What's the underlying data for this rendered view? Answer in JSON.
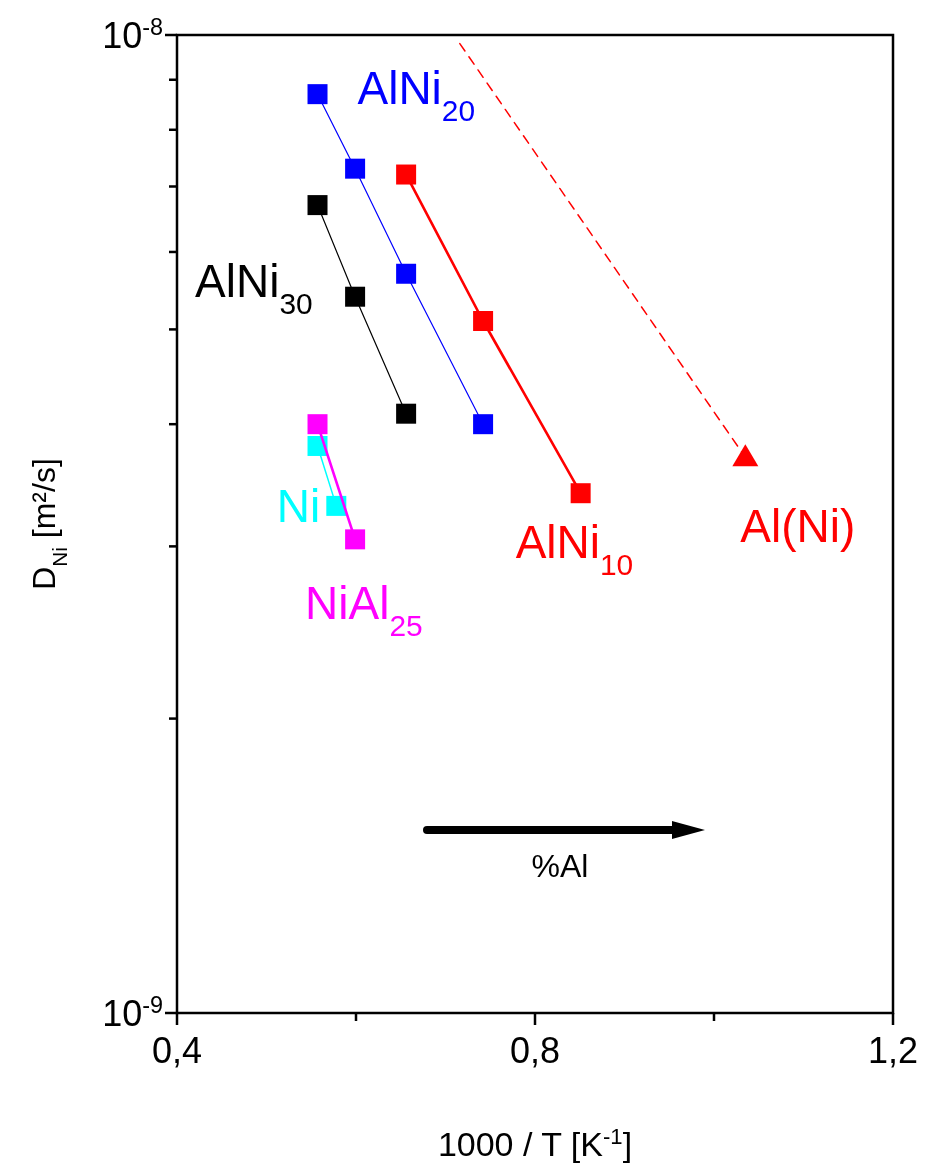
{
  "chart_data": {
    "type": "line",
    "xlabel": "1000 / T [K$^{-1}$]",
    "ylabel": "D$_{Ni}$ [m²/s]",
    "log": "y",
    "xlim": [
      0.4,
      1.2
    ],
    "xticks": [
      {
        "value": 0.4,
        "label": "0,4"
      },
      {
        "value": 0.6,
        "label": null
      },
      {
        "value": 0.8,
        "label": "0,8"
      },
      {
        "value": 1.0,
        "label": null
      },
      {
        "value": 1.2,
        "label": "1,2"
      }
    ],
    "ylim": [
      1e-09,
      1e-08
    ],
    "yticks": [
      {
        "value": 1e-09,
        "label": "10$^{-9}$"
      },
      {
        "value": 2e-09,
        "label": null
      },
      {
        "value": 3e-09,
        "label": null
      },
      {
        "value": 4e-09,
        "label": null
      },
      {
        "value": 5e-09,
        "label": null
      },
      {
        "value": 6e-09,
        "label": null
      },
      {
        "value": 7e-09,
        "label": null
      },
      {
        "value": 8e-09,
        "label": null
      },
      {
        "value": 9e-09,
        "label": null
      },
      {
        "value": 1e-08,
        "label": "10$^{-8}$"
      }
    ],
    "grid": false,
    "marker": "square",
    "annotations": [
      "%Al"
    ],
    "series": [
      {
        "name": "AlNi$_{20}$",
        "color": "#0000ff",
        "x": [
          0.557,
          0.599,
          0.656,
          0.742
        ],
        "values": [
          8.7e-09,
          7.3e-09,
          5.7e-09,
          4e-09
        ]
      },
      {
        "name": "AlNi$_{30}$",
        "color": "#000000",
        "x": [
          0.557,
          0.599,
          0.656
        ],
        "values": [
          6.7e-09,
          5.4e-09,
          4.1e-09
        ]
      },
      {
        "name": "AlNi$_{10}$",
        "color": "#ff0000",
        "x": [
          0.656,
          0.742,
          0.851
        ],
        "values": [
          7.2e-09,
          5.1e-09,
          3.4e-09
        ]
      },
      {
        "color": "#ff0000",
        "x": [
          0.716,
          1.035
        ],
        "values": [
          9.8e-09,
          3.7e-09
        ],
        "line_style": "dashed",
        "marker": "none"
      },
      {
        "name": "Al(Ni)",
        "color": "#ff0000",
        "x": [
          1.035
        ],
        "values": [
          3.7e-09
        ],
        "marker": "triangle"
      },
      {
        "name": "Ni",
        "color": "#00ffff",
        "x": [
          0.557,
          0.578
        ],
        "values": [
          3.8e-09,
          3.3e-09
        ]
      },
      {
        "name": "NiAl$_{25}$",
        "color": "#ff00ff",
        "x": [
          0.557,
          0.599
        ],
        "values": [
          4e-09,
          3.05e-09
        ]
      }
    ]
  }
}
